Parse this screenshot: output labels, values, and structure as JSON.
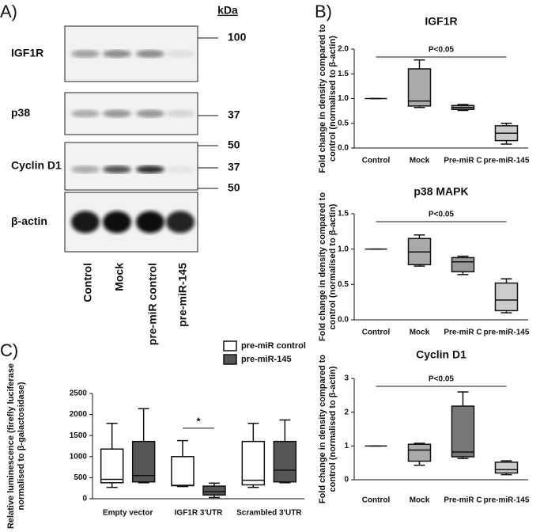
{
  "panel_labels": [
    "A)",
    "B)",
    "C)"
  ],
  "blot": {
    "unit": "kDa",
    "rows": [
      {
        "label": "IGF1R",
        "markers": [
          100
        ]
      },
      {
        "label": "p38",
        "markers": [
          37
        ]
      },
      {
        "label": "Cyclin D1",
        "markers": [
          50,
          37
        ]
      },
      {
        "label": "β-actin",
        "markers": [
          50
        ]
      }
    ],
    "lanes": [
      "Control",
      "Mock",
      "pre-miR control",
      "pre-miR-145"
    ]
  },
  "chart_data": [
    {
      "type": "box",
      "title": "IGF1R",
      "ylabel": [
        "Fold change in density compared to",
        "control (normalised to β-actin)"
      ],
      "categories": [
        "Control",
        "Mock",
        "Pre-miR C",
        "pre-miR-145"
      ],
      "box_colors": [
        "#ffffff",
        "#aaaaaa",
        "#999999",
        "#cccccc"
      ],
      "boxes": [
        {
          "min": 1,
          "q1": 1,
          "median": 1,
          "q3": 1,
          "max": 1
        },
        {
          "min": 0.82,
          "q1": 0.85,
          "median": 0.95,
          "q3": 1.6,
          "max": 1.78
        },
        {
          "min": 0.76,
          "q1": 0.78,
          "median": 0.82,
          "q3": 0.86,
          "max": 0.88
        },
        {
          "min": 0.08,
          "q1": 0.15,
          "median": 0.3,
          "q3": 0.45,
          "max": 0.5
        }
      ],
      "ylim": [
        0,
        2
      ],
      "yticks": [
        {
          "value": 0,
          "label": "0.0"
        },
        0.5,
        {
          "value": 1,
          "label": "1.0"
        },
        1.5,
        {
          "value": 2,
          "label": "2.0"
        }
      ],
      "annotation": "P<0.05"
    },
    {
      "type": "box",
      "title": "p38 MAPK",
      "ylabel": [
        "Fold change in density compared to",
        "control (normalised to β-actin)"
      ],
      "categories": [
        "Control",
        "Mock",
        "Pre-miR C",
        "pre-miR-145"
      ],
      "box_colors": [
        "#ffffff",
        "#aaaaaa",
        "#999999",
        "#cccccc"
      ],
      "boxes": [
        {
          "min": 1,
          "q1": 1,
          "median": 1,
          "q3": 1,
          "max": 1
        },
        {
          "min": 0.76,
          "q1": 0.78,
          "median": 0.96,
          "q3": 1.15,
          "max": 1.2
        },
        {
          "min": 0.64,
          "q1": 0.68,
          "median": 0.82,
          "q3": 0.88,
          "max": 0.9
        },
        {
          "min": 0.1,
          "q1": 0.13,
          "median": 0.28,
          "q3": 0.52,
          "max": 0.58
        }
      ],
      "ylim": [
        0,
        1.5
      ],
      "yticks": [
        {
          "value": 0,
          "label": "0.0"
        },
        0.5,
        {
          "value": 1,
          "label": "1.0"
        },
        1.5
      ],
      "annotation": "P<0.05"
    },
    {
      "type": "box",
      "title": "Cyclin D1",
      "ylabel": [
        "Fold change in density compared to",
        "control (normalised to β-actin)"
      ],
      "categories": [
        "Control",
        "Mock",
        "Pre-miR C",
        "pre-miR-145"
      ],
      "box_colors": [
        "#ffffff",
        "#aaaaaa",
        "#777777",
        "#cccccc"
      ],
      "boxes": [
        {
          "min": 1,
          "q1": 1,
          "median": 1,
          "q3": 1,
          "max": 1
        },
        {
          "min": 0.43,
          "q1": 0.55,
          "median": 0.88,
          "q3": 1.05,
          "max": 1.08
        },
        {
          "min": 0.63,
          "q1": 0.68,
          "median": 0.82,
          "q3": 2.18,
          "max": 2.6
        },
        {
          "min": 0.15,
          "q1": 0.2,
          "median": 0.3,
          "q3": 0.52,
          "max": 0.56
        }
      ],
      "ylim": [
        0,
        3
      ],
      "yticks": [
        0,
        1,
        2,
        3
      ],
      "annotation": "P<0.05"
    },
    {
      "type": "grouped-box",
      "ylabel": [
        "Relative luminescence (firefly luciferase",
        "normalised to β-galactosidase)"
      ],
      "categories": [
        "Empty vector",
        "IGF1R 3'UTR",
        "Scrambled 3'UTR"
      ],
      "series": [
        {
          "name": "pre-miR control",
          "color": "#ffffff",
          "boxes": [
            {
              "min": 270,
              "q1": 380,
              "median": 460,
              "q3": 1180,
              "max": 1790
            },
            {
              "min": 290,
              "q1": 310,
              "median": 320,
              "q3": 1000,
              "max": 1380
            },
            {
              "min": 270,
              "q1": 330,
              "median": 440,
              "q3": 1360,
              "max": 1790
            }
          ]
        },
        {
          "name": "pre-miR-145",
          "color": "#555555",
          "boxes": [
            {
              "min": 380,
              "q1": 400,
              "median": 550,
              "q3": 1360,
              "max": 2140
            },
            {
              "min": 30,
              "q1": 90,
              "median": 170,
              "q3": 300,
              "max": 370
            },
            {
              "min": 380,
              "q1": 400,
              "median": 680,
              "q3": 1360,
              "max": 1870
            }
          ]
        }
      ],
      "ylim": [
        0,
        2500
      ],
      "yticks": [
        0,
        500,
        1000,
        1500,
        2000,
        2500
      ],
      "annotation": "*"
    }
  ]
}
